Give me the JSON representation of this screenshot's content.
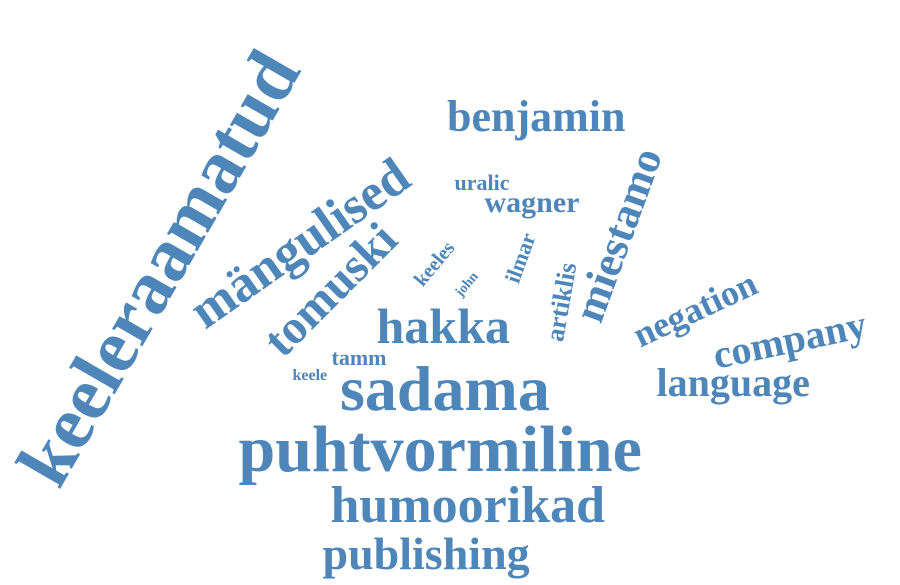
{
  "word_cloud": {
    "color": "#4f86b9",
    "words": [
      {
        "text": "keeleraamatud",
        "orientation": "rotated"
      },
      {
        "text": "mängulised",
        "orientation": "rotated"
      },
      {
        "text": "tomuski",
        "orientation": "rotated"
      },
      {
        "text": "benjamin",
        "orientation": "horizontal"
      },
      {
        "text": "uralic",
        "orientation": "horizontal"
      },
      {
        "text": "wagner",
        "orientation": "horizontal"
      },
      {
        "text": "miestamo",
        "orientation": "rotated"
      },
      {
        "text": "keeles",
        "orientation": "rotated"
      },
      {
        "text": "john",
        "orientation": "rotated"
      },
      {
        "text": "ilmar",
        "orientation": "rotated"
      },
      {
        "text": "artiklis",
        "orientation": "rotated"
      },
      {
        "text": "negation",
        "orientation": "rotated"
      },
      {
        "text": "hakka",
        "orientation": "horizontal"
      },
      {
        "text": "company",
        "orientation": "horizontal"
      },
      {
        "text": "keele",
        "orientation": "horizontal"
      },
      {
        "text": "tamm",
        "orientation": "horizontal"
      },
      {
        "text": "sadama",
        "orientation": "horizontal"
      },
      {
        "text": "language",
        "orientation": "horizontal"
      },
      {
        "text": "puhtvormiline",
        "orientation": "horizontal"
      },
      {
        "text": "humoorikad",
        "orientation": "horizontal"
      },
      {
        "text": "publishing",
        "orientation": "horizontal"
      }
    ]
  }
}
